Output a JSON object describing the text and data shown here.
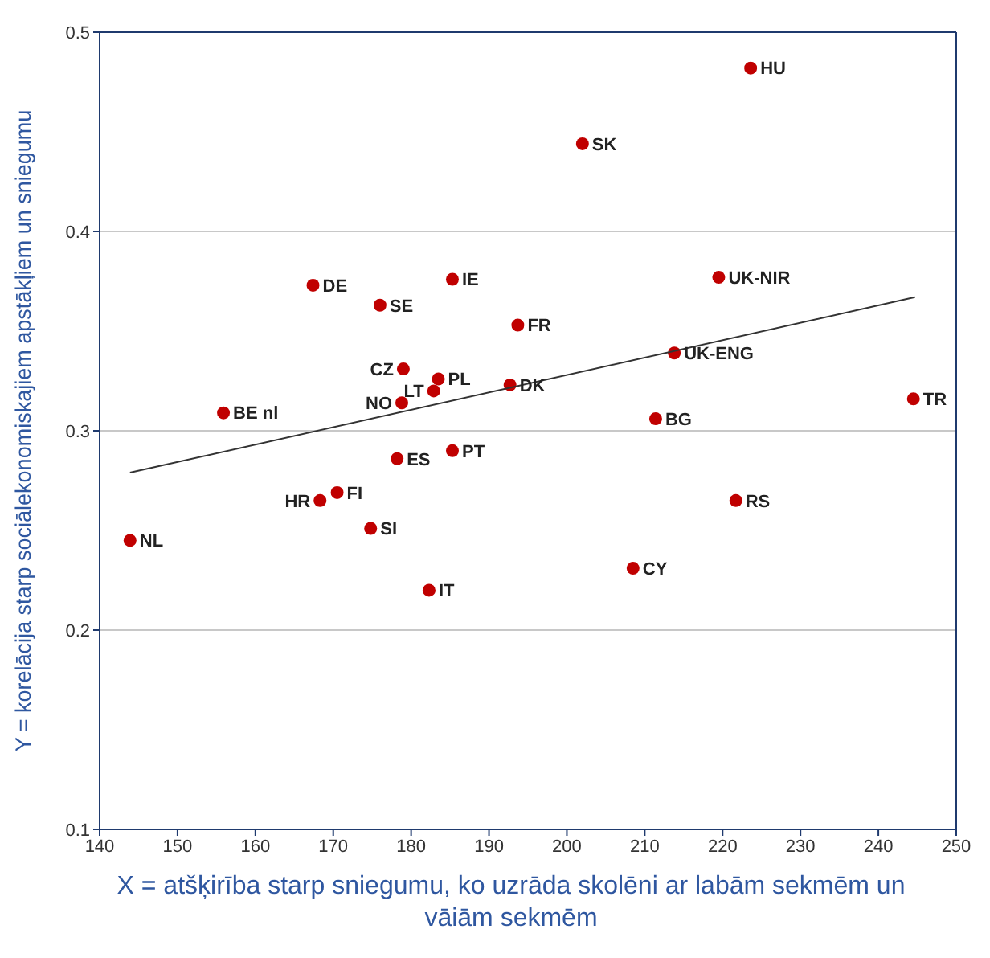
{
  "chart_data": {
    "type": "scatter",
    "xlabel": "X = atšķirība starp sniegumu, ko uzrāda skolēni ar labām sekmēm un vāiām sekmēm",
    "ylabel": "Y = korelācija starp sociālekonomiskajiem apstākļiem un sniegumu",
    "series": [
      {
        "marker": "circle",
        "color": "#c00000",
        "x": [
          223.6,
          202.0,
          167.4,
          176.0,
          185.3,
          193.7,
          179.0,
          183.5,
          182.9,
          178.8,
          192.7,
          155.9,
          219.5,
          213.8,
          211.4,
          244.5,
          178.2,
          185.3,
          168.3,
          170.5,
          174.8,
          143.9,
          182.3,
          208.5,
          221.7
        ],
        "values": [
          0.482,
          0.444,
          0.373,
          0.363,
          0.376,
          0.353,
          0.331,
          0.326,
          0.32,
          0.314,
          0.323,
          0.309,
          0.377,
          0.339,
          0.306,
          0.316,
          0.286,
          0.29,
          0.265,
          0.269,
          0.251,
          0.245,
          0.22,
          0.231,
          0.265
        ]
      },
      {
        "type": "line",
        "color": "#333333",
        "x": [
          143.9,
          244.7
        ],
        "values": [
          0.279,
          0.367
        ]
      }
    ],
    "annotations": [
      {
        "text": "HU",
        "x": 223.6,
        "y": 0.482
      },
      {
        "text": "SK",
        "x": 202.0,
        "y": 0.444
      },
      {
        "text": "DE",
        "x": 167.4,
        "y": 0.373
      },
      {
        "text": "SE",
        "x": 176.0,
        "y": 0.363
      },
      {
        "text": "IE",
        "x": 185.3,
        "y": 0.376
      },
      {
        "text": "FR",
        "x": 193.7,
        "y": 0.353
      },
      {
        "text": "CZ",
        "x": 179.0,
        "y": 0.331
      },
      {
        "text": "PL",
        "x": 183.5,
        "y": 0.326
      },
      {
        "text": "LT",
        "x": 182.9,
        "y": 0.32
      },
      {
        "text": "NO",
        "x": 178.8,
        "y": 0.314
      },
      {
        "text": "DK",
        "x": 192.7,
        "y": 0.323
      },
      {
        "text": "BE nl",
        "x": 155.9,
        "y": 0.309
      },
      {
        "text": "UK-NIR",
        "x": 219.5,
        "y": 0.377
      },
      {
        "text": "UK-ENG",
        "x": 213.8,
        "y": 0.339
      },
      {
        "text": "BG",
        "x": 211.4,
        "y": 0.306
      },
      {
        "text": "TR",
        "x": 244.5,
        "y": 0.316
      },
      {
        "text": "ES",
        "x": 178.2,
        "y": 0.286
      },
      {
        "text": "PT",
        "x": 185.3,
        "y": 0.29
      },
      {
        "text": "HR",
        "x": 168.3,
        "y": 0.265
      },
      {
        "text": "FI",
        "x": 170.5,
        "y": 0.269
      },
      {
        "text": "SI",
        "x": 174.8,
        "y": 0.251
      },
      {
        "text": "NL",
        "x": 143.9,
        "y": 0.245
      },
      {
        "text": "IT",
        "x": 182.3,
        "y": 0.22
      },
      {
        "text": "CY",
        "x": 208.5,
        "y": 0.231
      },
      {
        "text": "RS",
        "x": 221.7,
        "y": 0.265
      }
    ],
    "xlim": [
      140,
      250
    ],
    "xticks": [
      140,
      150,
      160,
      170,
      180,
      190,
      200,
      210,
      220,
      230,
      240,
      250
    ],
    "ylim": [
      0.1,
      0.5
    ],
    "yticks": [
      0.1,
      0.2,
      0.3,
      0.4,
      0.5
    ],
    "grid": "y"
  }
}
